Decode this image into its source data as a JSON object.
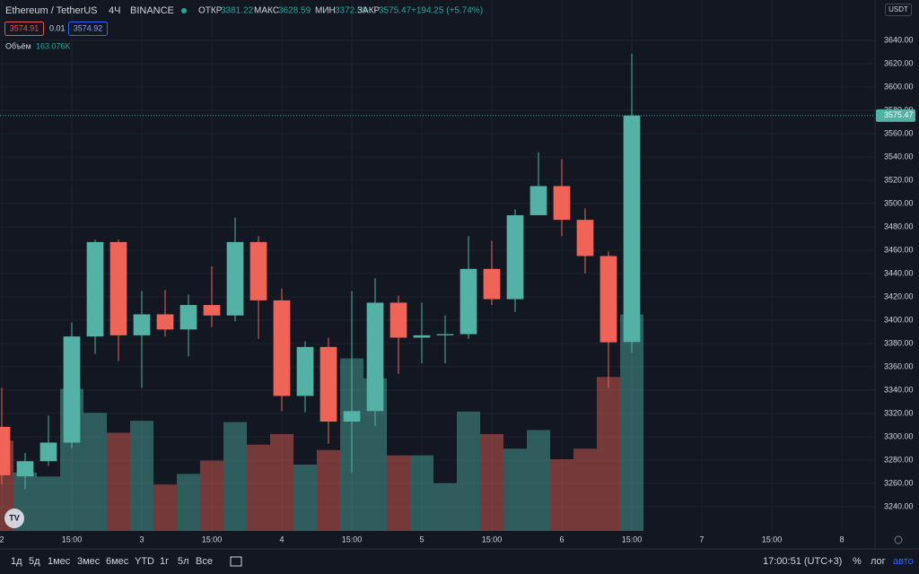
{
  "header": {
    "symbol": "Ethereum / TetherUS",
    "interval": "4Ч",
    "exchange": "BINANCE",
    "open_label": "ОТКР",
    "high_label": "МАКС",
    "low_label": "МИН",
    "close_label": "ЗАКР",
    "change": "+194.25 (+5.74%)",
    "sell": "3574.91",
    "spread": "0.01",
    "buy": "3574.92",
    "volume_label": "Объём",
    "volume_value": "163.076K",
    "currency": "USDT"
  },
  "chart_data": {
    "type": "candlestick",
    "open": [
      3308.5,
      3266,
      3279,
      3295,
      3386,
      3467,
      3387,
      3405,
      3392,
      3413,
      3404,
      3467,
      3417,
      3335,
      3377,
      3313,
      3322,
      3415,
      3385,
      3387,
      3388,
      3444,
      3418,
      3490,
      3515,
      3486,
      3455,
      3381.22
    ],
    "high": [
      3342,
      3286,
      3318,
      3398,
      3469,
      3469,
      3425,
      3426,
      3422,
      3446,
      3488,
      3472,
      3427,
      3382,
      3385,
      3425,
      3436,
      3421,
      3415,
      3404,
      3472,
      3468,
      3495,
      3544,
      3538,
      3496,
      3459,
      3628.59
    ],
    "low": [
      3259,
      3255,
      3275,
      3290,
      3371,
      3365,
      3342,
      3386,
      3369,
      3394,
      3399,
      3384,
      3322,
      3321,
      3294,
      3269,
      3309,
      3354,
      3363,
      3363,
      3384,
      3413,
      3407,
      3490,
      3472,
      3440,
      3342,
      3372.59
    ],
    "close": [
      3267,
      3279,
      3295,
      3386,
      3467,
      3387,
      3405,
      3392,
      3413,
      3404,
      3467,
      3417,
      3335,
      3377,
      3313,
      3322,
      3415,
      3385,
      3387,
      3388,
      3444,
      3418,
      3490,
      3515,
      3486,
      3455,
      3381,
      3575.47
    ],
    "volume": [
      68,
      44,
      41,
      107,
      89,
      74,
      83,
      35,
      43,
      53,
      82,
      65,
      73,
      50,
      61,
      130,
      115,
      57,
      57,
      36,
      90,
      73,
      62,
      76,
      54,
      62,
      116,
      163.076
    ],
    "up_color": "#53b2a5",
    "down_color": "#ef6456",
    "xlim": [
      -0.0769,
      37.423
    ],
    "xticks": [
      {
        "value": 0,
        "label": "2"
      },
      {
        "value": 3,
        "label": "15:00"
      },
      {
        "value": 6,
        "label": "3"
      },
      {
        "value": 9,
        "label": "15:00"
      },
      {
        "value": 12,
        "label": "4"
      },
      {
        "value": 15,
        "label": "15:00"
      },
      {
        "value": 18,
        "label": "5"
      },
      {
        "value": 21,
        "label": "15:00"
      },
      {
        "value": 24,
        "label": "6"
      },
      {
        "value": 27,
        "label": "15:00"
      },
      {
        "value": 30,
        "label": "7"
      },
      {
        "value": 33,
        "label": "15:00"
      },
      {
        "value": 36,
        "label": "8"
      }
    ],
    "ylim": [
      3219.2,
      3674.6
    ],
    "yticks": [
      {
        "value": 3240,
        "label": "3240.00"
      },
      {
        "value": 3260,
        "label": "3260.00"
      },
      {
        "value": 3280,
        "label": "3280.00"
      },
      {
        "value": 3300,
        "label": "3300.00"
      },
      {
        "value": 3320,
        "label": "3320.00"
      },
      {
        "value": 3340,
        "label": "3340.00"
      },
      {
        "value": 3360,
        "label": "3360.00"
      },
      {
        "value": 3380,
        "label": "3380.00"
      },
      {
        "value": 3400,
        "label": "3400.00"
      },
      {
        "value": 3420,
        "label": "3420.00"
      },
      {
        "value": 3440,
        "label": "3440.00"
      },
      {
        "value": 3460,
        "label": "3460.00"
      },
      {
        "value": 3480,
        "label": "3480.00"
      },
      {
        "value": 3500,
        "label": "3500.00"
      },
      {
        "value": 3520,
        "label": "3520.00"
      },
      {
        "value": 3540,
        "label": "3540.00"
      },
      {
        "value": 3560,
        "label": "3560.00"
      },
      {
        "value": 3580,
        "label": "3580.00"
      },
      {
        "value": 3600,
        "label": "3600.00"
      },
      {
        "value": 3620,
        "label": "3620.00"
      },
      {
        "value": 3640,
        "label": "3640.00"
      }
    ],
    "vlim": [
      0,
      400
    ],
    "grid": true
  },
  "toolbar": {
    "ranges": [
      "1д",
      "5д",
      "1мес",
      "3мес",
      "6мес",
      "YTD",
      "1г",
      "5л",
      "Все"
    ],
    "clock": "17:00:51 (UTC+3)",
    "percent": "%",
    "log": "лог",
    "auto": "авто"
  }
}
